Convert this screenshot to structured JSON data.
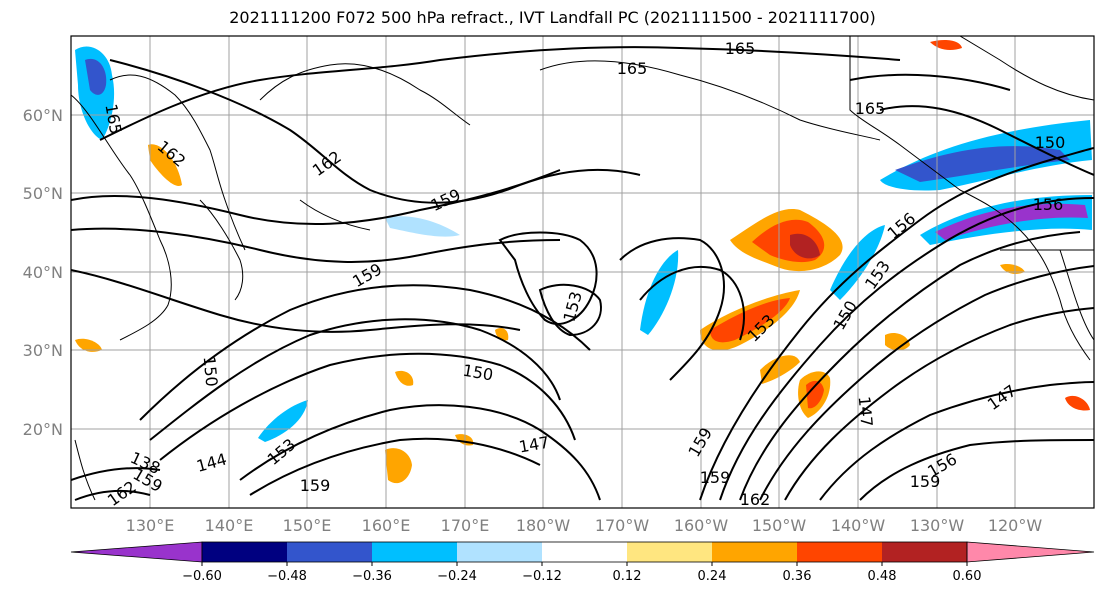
{
  "title": "2021111200 F072 500 hPa refract., IVT Landfall PC (2021111500 - 2021111700)",
  "lat_labels": [
    "60°N",
    "50°N",
    "40°N",
    "30°N",
    "20°N"
  ],
  "lon_labels": [
    "130°E",
    "140°E",
    "150°E",
    "160°E",
    "170°E",
    "180°W",
    "170°W",
    "160°W",
    "150°W",
    "140°W",
    "130°W",
    "120°W"
  ],
  "colorbar": {
    "ticks": [
      "−0.60",
      "−0.48",
      "−0.36",
      "−0.24",
      "−0.12",
      "0.12",
      "0.24",
      "0.36",
      "0.48",
      "0.60"
    ],
    "colors": [
      "#9933cc",
      "#000080",
      "#3355cc",
      "#00bfff",
      "#b0e2ff",
      "#ffffff",
      "#ffe680",
      "#ffa500",
      "#ff4500",
      "#b22222",
      "#ff88aa"
    ]
  },
  "contour_labels": [
    "165",
    "165",
    "165",
    "165",
    "162",
    "162",
    "159",
    "159",
    "159",
    "159",
    "159",
    "159",
    "159",
    "156",
    "156",
    "156",
    "153",
    "153",
    "153",
    "153",
    "150",
    "150",
    "150",
    "150",
    "147",
    "147",
    "147",
    "144",
    "138",
    "162",
    "162"
  ]
}
